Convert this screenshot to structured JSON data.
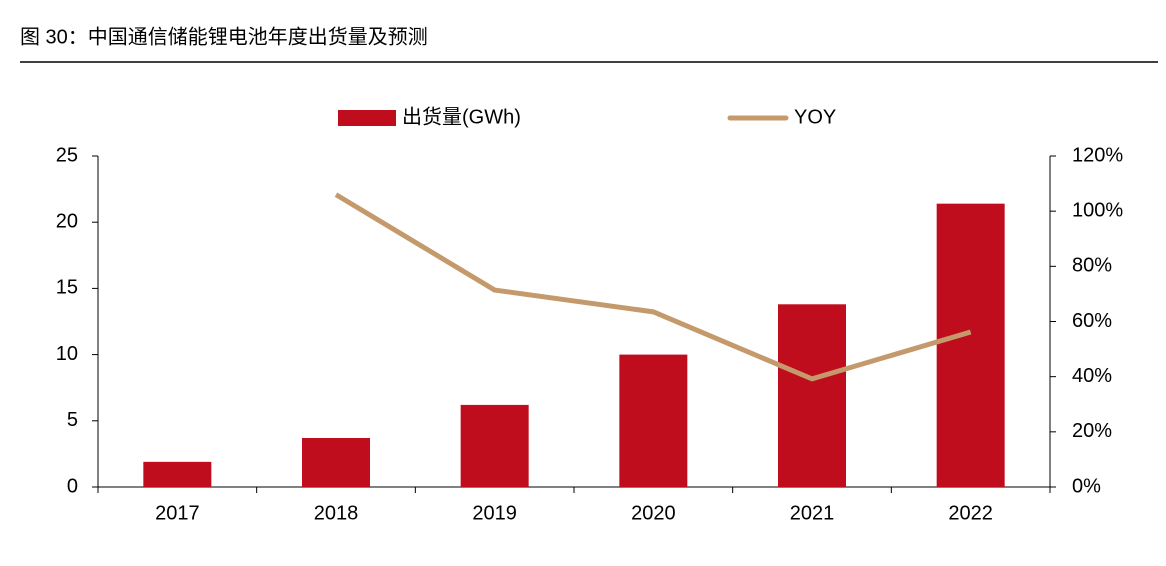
{
  "chart_data": {
    "type": "bar",
    "title": "图 30：中国通信储能锂电池年度出货量及预测",
    "categories": [
      "2017",
      "2018",
      "2019",
      "2020",
      "2021",
      "2022"
    ],
    "series": [
      {
        "name": "出货量(GWh)",
        "type": "bar",
        "color": "#c00d1e",
        "values": [
          1.9,
          3.7,
          6.2,
          10.0,
          13.8,
          21.4
        ]
      },
      {
        "name": "YOY",
        "type": "line",
        "axis": "y2",
        "color": "#c49a6c",
        "values": [
          null,
          106,
          71.4,
          63.5,
          39.2,
          56.2
        ]
      }
    ],
    "ylim": [
      0,
      25
    ],
    "yticks": [
      0,
      5,
      10,
      15,
      20,
      25
    ],
    "y2lim": [
      0,
      120
    ],
    "y2ticks": [
      {
        "value": 0,
        "label": "0%"
      },
      {
        "value": 20,
        "label": "20%"
      },
      {
        "value": 40,
        "label": "40%"
      },
      {
        "value": 60,
        "label": "60%"
      },
      {
        "value": 80,
        "label": "80%"
      },
      {
        "value": 100,
        "label": "100%"
      },
      {
        "value": 120,
        "label": "120%"
      }
    ],
    "legend": "top",
    "grid": false
  }
}
